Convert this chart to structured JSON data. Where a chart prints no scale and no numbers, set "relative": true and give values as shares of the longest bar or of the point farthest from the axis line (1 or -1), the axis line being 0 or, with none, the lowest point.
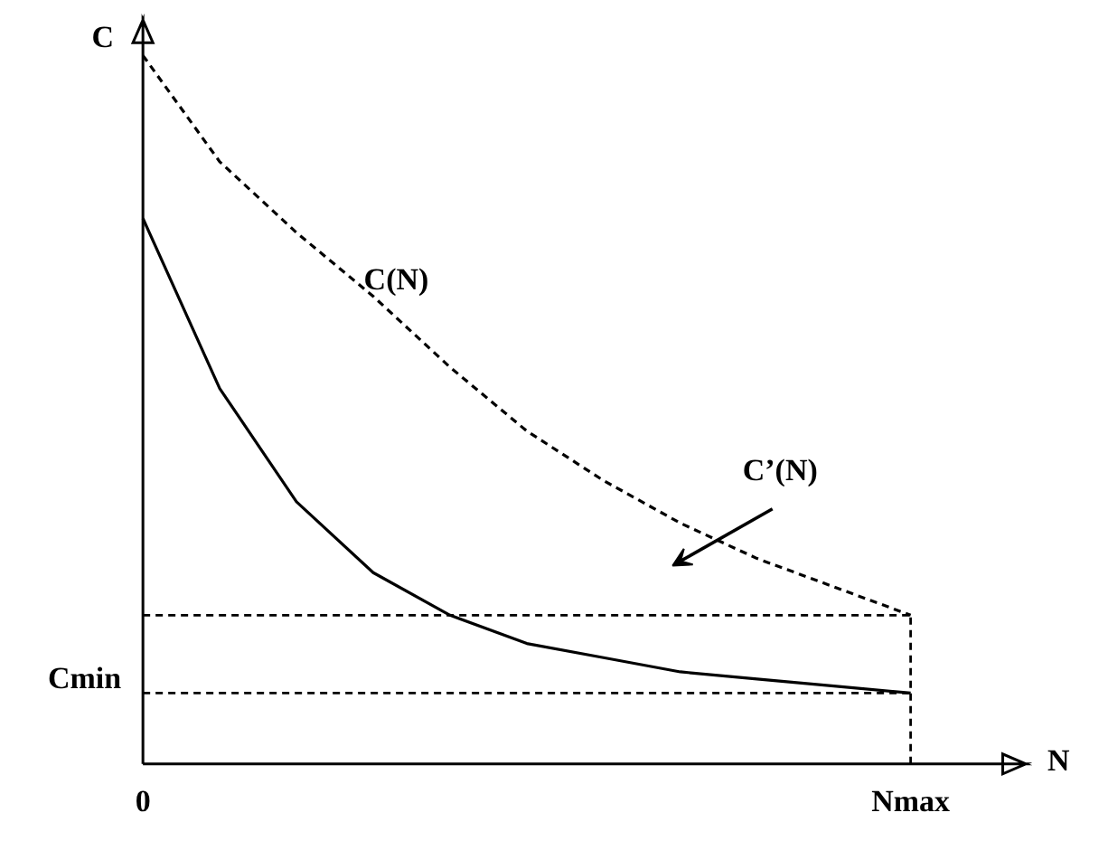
{
  "chart_data": {
    "type": "line",
    "relative": true,
    "xlabel": "N",
    "ylabel": "C",
    "categories": [
      "0",
      null,
      null,
      null,
      null,
      null,
      null,
      null,
      null,
      null,
      "Nmax"
    ],
    "series": [
      {
        "color": "#000000",
        "line_style": "solid",
        "values": [
          0.77,
          0.53,
          0.37,
          0.27,
          0.21,
          0.17,
          0.15,
          0.13,
          0.12,
          0.11,
          0.1
        ]
      },
      {
        "color": "#000000",
        "line_style": "dashed",
        "values": [
          1.0,
          0.85,
          0.75,
          0.66,
          0.56,
          0.47,
          0.4,
          0.34,
          0.29,
          0.25,
          0.21
        ]
      }
    ],
    "ref_lines": [
      {
        "axis": "y",
        "value": 0.21,
        "color": "#000000",
        "line_style": "dashed"
      },
      {
        "axis": "y",
        "value": 0.1,
        "label": "Cmin",
        "color": "#000000",
        "line_style": "dashed"
      },
      {
        "axis": "x",
        "value": "Nmax",
        "color": "#000000",
        "line_style": "dashed"
      }
    ],
    "annotations": [
      "C(N)",
      "C’(N)"
    ]
  }
}
